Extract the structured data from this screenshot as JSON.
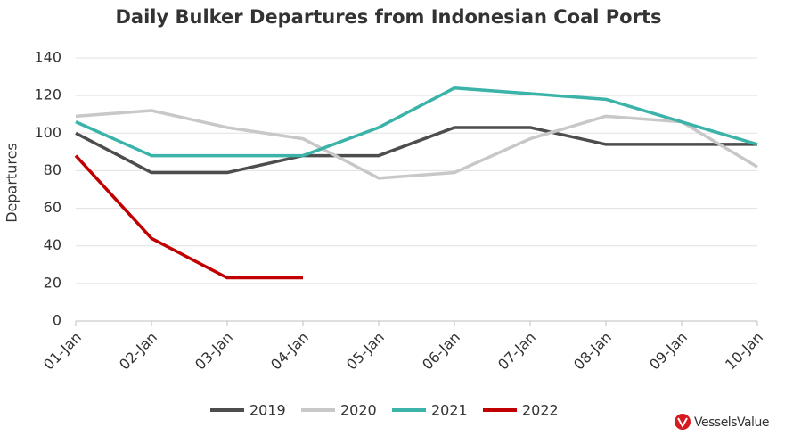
{
  "chart_data": {
    "type": "line",
    "title": "Daily Bulker Departures from Indonesian Coal Ports",
    "y_label": "Departures",
    "categories": [
      "01-Jan",
      "02-Jan",
      "03-Jan",
      "04-Jan",
      "05-Jan",
      "06-Jan",
      "07-Jan",
      "08-Jan",
      "09-Jan",
      "10-Jan"
    ],
    "series": [
      {
        "name": "2019",
        "color": "#4d4d4d",
        "values": [
          100,
          79,
          79,
          88,
          88,
          103,
          103,
          94,
          94,
          94
        ]
      },
      {
        "name": "2020",
        "color": "#c8c8c8",
        "values": [
          109,
          112,
          103,
          97,
          76,
          79,
          97,
          109,
          106,
          82
        ]
      },
      {
        "name": "2021",
        "color": "#3bb3a9",
        "values": [
          106,
          88,
          88,
          88,
          103,
          124,
          121,
          118,
          106,
          94
        ]
      },
      {
        "name": "2022",
        "color": "#c00000",
        "values": [
          88,
          44,
          23,
          23,
          null,
          null,
          null,
          null,
          null,
          null
        ]
      }
    ],
    "ylim": [
      0,
      140
    ],
    "yticks": [
      0,
      20,
      40,
      60,
      80,
      100,
      120,
      140
    ],
    "grid": true,
    "legend": "bottom",
    "logo": "VesselsValue"
  }
}
